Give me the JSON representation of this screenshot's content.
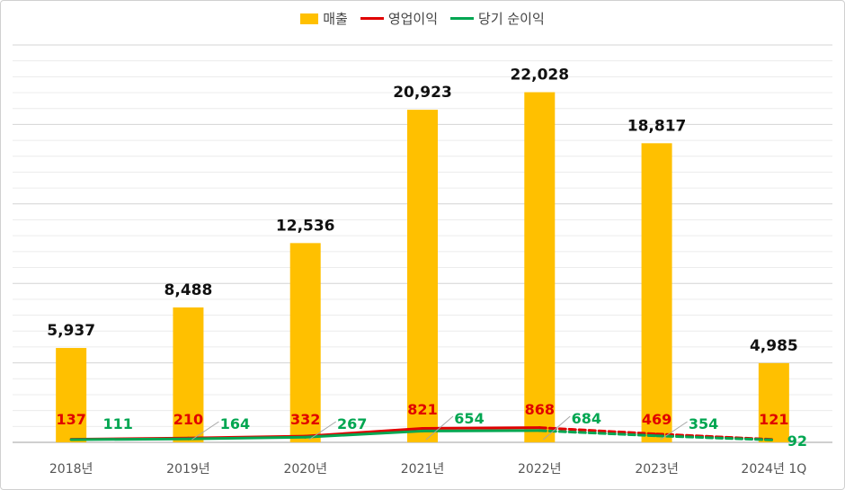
{
  "colors": {
    "sales": "#FFC000",
    "operating_profit": "#E00000",
    "net_profit": "#00A651"
  },
  "legend": {
    "sales": "매출",
    "operating_profit": "영업이익",
    "net_profit": "당기 순이익"
  },
  "chart_data": {
    "type": "bar",
    "categories": [
      "2018년",
      "2019년",
      "2020년",
      "2021년",
      "2022년",
      "2023년",
      "2024년 1Q"
    ],
    "series": [
      {
        "name": "매출",
        "type": "bar",
        "values": [
          5937,
          8488,
          12536,
          20923,
          22028,
          18817,
          4985
        ]
      },
      {
        "name": "영업이익",
        "type": "line",
        "values": [
          137,
          210,
          332,
          821,
          868,
          469,
          121
        ]
      },
      {
        "name": "당기 순이익",
        "type": "line",
        "values": [
          111,
          164,
          267,
          654,
          684,
          354,
          92
        ]
      }
    ],
    "data_labels": {
      "sales": [
        "5,937",
        "8,488",
        "12,536",
        "20,923",
        "22,028",
        "18,817",
        "4,985"
      ],
      "operating_profit": [
        "137",
        "210",
        "332",
        "821",
        "868",
        "469",
        "121"
      ],
      "net_profit": [
        "111",
        "164",
        "267",
        "654",
        "684",
        "354",
        "92"
      ]
    },
    "ylim": [
      0,
      25000
    ],
    "grid": true,
    "legend_position": "top",
    "dashed_segment_after": "2022년"
  }
}
